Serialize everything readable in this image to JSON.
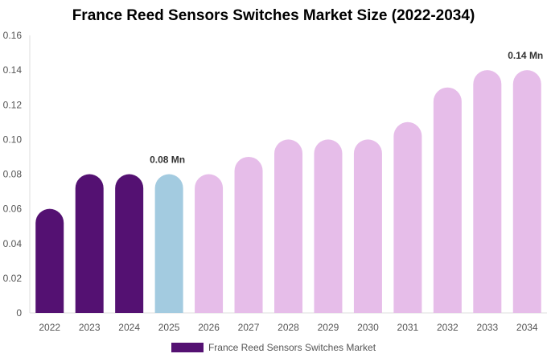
{
  "chart_data": {
    "type": "bar",
    "title": "France Reed Sensors Switches Market Size (2022-2034)",
    "xlabel": "",
    "ylabel": "",
    "categories": [
      "2022",
      "2023",
      "2024",
      "2025",
      "2026",
      "2027",
      "2028",
      "2029",
      "2030",
      "2031",
      "2032",
      "2033",
      "2034"
    ],
    "series": [
      {
        "name": "France Reed Sensors Switches Market",
        "values": [
          0.06,
          0.08,
          0.08,
          0.08,
          0.08,
          0.09,
          0.1,
          0.1,
          0.1,
          0.11,
          0.13,
          0.14,
          0.14
        ]
      }
    ],
    "bar_colors": [
      "#541172",
      "#541172",
      "#541172",
      "#a3cbe0",
      "#e6bde9",
      "#e6bde9",
      "#e6bde9",
      "#e6bde9",
      "#e6bde9",
      "#e6bde9",
      "#e6bde9",
      "#e6bde9",
      "#e6bde9"
    ],
    "legend_color": "#541172",
    "y_ticks": [
      "0",
      "0.02",
      "0.04",
      "0.06",
      "0.08",
      "0.10",
      "0.12",
      "0.14",
      "0.16"
    ],
    "ylim": [
      0,
      0.16
    ],
    "annotations": [
      {
        "category": "2025",
        "text": "0.08 Mn"
      },
      {
        "category": "2034",
        "text": "0.14 Mn"
      }
    ],
    "legend_position": "bottom-center",
    "grid": false
  }
}
